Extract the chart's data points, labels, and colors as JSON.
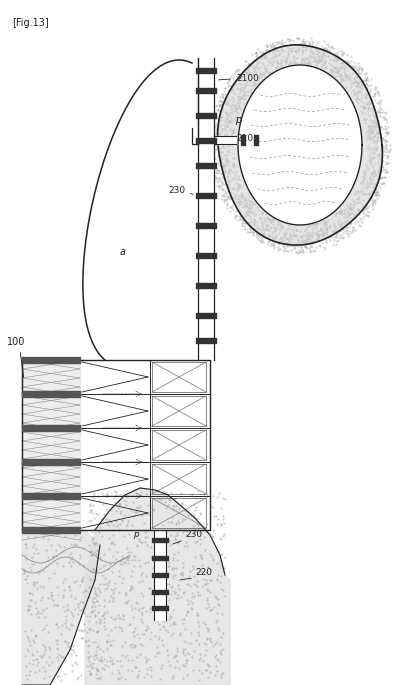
{
  "title": "[Fig.13]",
  "bg_color": "#ffffff",
  "line_color": "#222222",
  "dark_color": "#444444",
  "gray_color": "#888888",
  "light_gray": "#cccccc",
  "stipple_color": "#aaaaaa",
  "label_100": "100",
  "label_210": "210",
  "label_2100": "2100",
  "label_220": "220",
  "label_230_top": "230",
  "label_230_bot": "230",
  "label_a": "a",
  "label_p_top": "p",
  "label_p_bot": "p"
}
